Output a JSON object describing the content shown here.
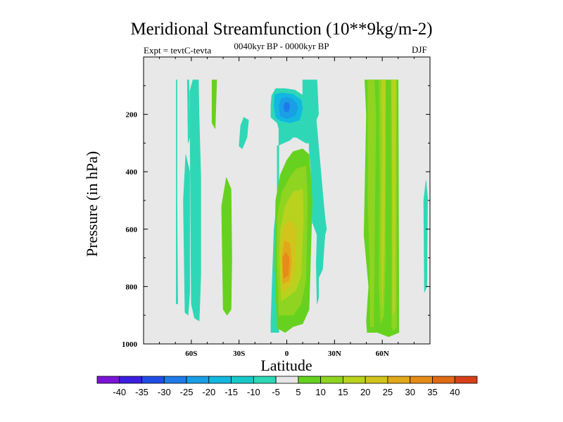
{
  "chart_data": {
    "type": "heatmap",
    "title": "Meridional Streamfunction (10**9kg/m-2)",
    "subtitle": "0040kyr BP - 0000kyr BP",
    "left_label": "Expt = tevtC-tevta",
    "right_label": "DJF",
    "xlabel": "Latitude",
    "ylabel": "Pressure (in hPa)",
    "xlim": [
      -90,
      90
    ],
    "ylim": [
      1000,
      0
    ],
    "x_ticks": [
      {
        "value": -60,
        "label": "60S"
      },
      {
        "value": -30,
        "label": "30S"
      },
      {
        "value": 0,
        "label": "0"
      },
      {
        "value": 30,
        "label": "30N"
      },
      {
        "value": 60,
        "label": "60N"
      }
    ],
    "y_ticks": [
      {
        "value": 200,
        "label": "200"
      },
      {
        "value": 400,
        "label": "400"
      },
      {
        "value": 600,
        "label": "600"
      },
      {
        "value": 800,
        "label": "800"
      },
      {
        "value": 1000,
        "label": "1000"
      }
    ],
    "background_color": "#e8e8e8",
    "colorbar": {
      "levels": [
        "-40",
        "-35",
        "-30",
        "-25",
        "-20",
        "-15",
        "-10",
        "-5",
        "5",
        "10",
        "15",
        "20",
        "25",
        "30",
        "35",
        "40"
      ],
      "colors": [
        "#7b13d6",
        "#3b1ee0",
        "#1e4de6",
        "#1f7be8",
        "#1a9ee6",
        "#12b8e0",
        "#16c9c8",
        "#2ed8b6",
        "#e6e6e6",
        "#66d21f",
        "#8fd420",
        "#b8d21e",
        "#d2c41c",
        "#e0a81a",
        "#e68a18",
        "#e06a16",
        "#d8401a"
      ]
    },
    "regions": [
      {
        "value": -10,
        "color": "#2ed8b6",
        "points": [
          [
            -69.5,
            80
          ],
          [
            -69,
            80
          ],
          [
            -69,
            860
          ],
          [
            -69.5,
            860
          ]
        ]
      },
      {
        "value": -10,
        "color": "#2ed8b6",
        "points": [
          [
            -68.5,
            860
          ],
          [
            -69,
            520
          ],
          [
            -69.5,
            860
          ]
        ]
      },
      {
        "value": -10,
        "color": "#2ed8b6",
        "points": [
          [
            -64,
            890
          ],
          [
            -65,
            500
          ],
          [
            -63.5,
            340
          ],
          [
            -61,
            400
          ],
          [
            -61,
            820
          ],
          [
            -62,
            900
          ]
        ]
      },
      {
        "value": -10,
        "color": "#2ed8b6",
        "points": [
          [
            -62.5,
            80
          ],
          [
            -61.5,
            80
          ],
          [
            -61,
            280
          ],
          [
            -62,
            300
          ]
        ]
      },
      {
        "value": -10,
        "color": "#2ed8b6",
        "points": [
          [
            -60,
            860
          ],
          [
            -61,
            120
          ],
          [
            -59,
            80
          ],
          [
            -55.5,
            80
          ],
          [
            -55,
            220
          ],
          [
            -54,
            420
          ],
          [
            -54,
            760
          ],
          [
            -55,
            920
          ],
          [
            -58,
            910
          ]
        ]
      },
      {
        "value": 5,
        "color": "#66d21f",
        "points": [
          [
            -47,
            80
          ],
          [
            -44,
            80
          ],
          [
            -45,
            250
          ],
          [
            -47,
            230
          ]
        ]
      },
      {
        "value": -10,
        "color": "#2ed8b6",
        "points": [
          [
            -30,
            310
          ],
          [
            -29,
            240
          ],
          [
            -27,
            210
          ],
          [
            -24,
            220
          ],
          [
            -25,
            280
          ],
          [
            -28,
            320
          ]
        ]
      },
      {
        "value": 5,
        "color": "#66d21f",
        "points": [
          [
            -40,
            880
          ],
          [
            -41,
            520
          ],
          [
            -38,
            420
          ],
          [
            -35,
            460
          ],
          [
            -34.5,
            700
          ],
          [
            -35,
            880
          ],
          [
            -37.5,
            900
          ]
        ]
      },
      {
        "value": -10,
        "color": "#2ed8b6",
        "points": [
          [
            -10,
            170
          ],
          [
            -9.5,
            135
          ],
          [
            -7,
            110
          ],
          [
            -1,
            110
          ],
          [
            5,
            115
          ],
          [
            12,
            140
          ],
          [
            16,
            155
          ],
          [
            18,
            185
          ],
          [
            23,
            500
          ],
          [
            24,
            560
          ],
          [
            25,
            600
          ],
          [
            24,
            620
          ],
          [
            22.5,
            740
          ],
          [
            20,
            770
          ],
          [
            20,
            840
          ],
          [
            19,
            860
          ],
          [
            18.5,
            720
          ],
          [
            19,
            620
          ],
          [
            16,
            575
          ],
          [
            16,
            580
          ],
          [
            15,
            380
          ],
          [
            14,
            320
          ],
          [
            14,
            300
          ],
          [
            12,
            300
          ],
          [
            6,
            280
          ],
          [
            4,
            280
          ],
          [
            2,
            290
          ],
          [
            -2,
            300
          ],
          [
            -6,
            310
          ],
          [
            -6,
            500
          ],
          [
            -8,
            600
          ],
          [
            -9,
            760
          ],
          [
            -10,
            920
          ],
          [
            -10,
            960
          ],
          [
            -5,
            960
          ],
          [
            -5,
            250
          ],
          [
            -6,
            230
          ],
          [
            -8,
            220
          ],
          [
            -10,
            210
          ]
        ]
      },
      {
        "value": -10,
        "color": "#2ed8b6",
        "points": [
          [
            10,
            200
          ],
          [
            10,
            80
          ],
          [
            19,
            80
          ],
          [
            20,
            200
          ],
          [
            17,
            240
          ],
          [
            12,
            240
          ]
        ]
      },
      {
        "value": -15,
        "color": "#12b8e0",
        "points": [
          [
            -8,
            170
          ],
          [
            -7.5,
            130
          ],
          [
            -3,
            125
          ],
          [
            4,
            130
          ],
          [
            9,
            150
          ],
          [
            10,
            180
          ],
          [
            8,
            220
          ],
          [
            2,
            230
          ],
          [
            -4,
            222
          ],
          [
            -7,
            210
          ]
        ]
      },
      {
        "value": -20,
        "color": "#1a9ee6",
        "points": [
          [
            -5,
            170
          ],
          [
            -3.5,
            145
          ],
          [
            0,
            140
          ],
          [
            3,
            145
          ],
          [
            6,
            160
          ],
          [
            7,
            180
          ],
          [
            5,
            205
          ],
          [
            0,
            215
          ],
          [
            -4,
            205
          ]
        ]
      },
      {
        "value": -25,
        "color": "#1f7be8",
        "points": [
          [
            -2,
            175
          ],
          [
            -1,
            158
          ],
          [
            1,
            158
          ],
          [
            2,
            172
          ],
          [
            1,
            190
          ],
          [
            -1,
            190
          ]
        ]
      },
      {
        "value": 5,
        "color": "#66d21f",
        "points": [
          [
            -6,
            945
          ],
          [
            -7.5,
            720
          ],
          [
            -7,
            500
          ],
          [
            -4,
            410
          ],
          [
            0,
            360
          ],
          [
            4,
            330
          ],
          [
            10,
            320
          ],
          [
            14,
            340
          ],
          [
            16,
            500
          ],
          [
            14,
            880
          ],
          [
            10,
            930
          ],
          [
            4,
            940
          ],
          [
            -1,
            960
          ]
        ]
      },
      {
        "value": 10,
        "color": "#8fd420",
        "points": [
          [
            -5,
            900
          ],
          [
            -6,
            720
          ],
          [
            -6,
            560
          ],
          [
            -3,
            470
          ],
          [
            2,
            420
          ],
          [
            6,
            390
          ],
          [
            12,
            380
          ],
          [
            13,
            500
          ],
          [
            12,
            780
          ],
          [
            9,
            860
          ],
          [
            4,
            900
          ]
        ]
      },
      {
        "value": 15,
        "color": "#b8d21e",
        "points": [
          [
            -3.5,
            850
          ],
          [
            -4.5,
            700
          ],
          [
            -4,
            600
          ],
          [
            -1,
            520
          ],
          [
            4,
            470
          ],
          [
            10,
            460
          ],
          [
            10.5,
            560
          ],
          [
            9,
            760
          ],
          [
            6,
            810
          ],
          [
            2,
            830
          ]
        ]
      },
      {
        "value": 20,
        "color": "#d2c41c",
        "points": [
          [
            -3,
            820
          ],
          [
            -4,
            660
          ],
          [
            -2,
            590
          ],
          [
            2,
            570
          ],
          [
            6,
            600
          ],
          [
            5,
            740
          ],
          [
            2,
            800
          ]
        ]
      },
      {
        "value": 25,
        "color": "#e0a81a",
        "points": [
          [
            -2.5,
            790
          ],
          [
            -3,
            700
          ],
          [
            -1.5,
            640
          ],
          [
            2,
            650
          ],
          [
            3,
            720
          ],
          [
            1.5,
            780
          ]
        ]
      },
      {
        "value": 30,
        "color": "#e68a18",
        "points": [
          [
            -2,
            770
          ],
          [
            -2.5,
            700
          ],
          [
            -0.5,
            680
          ],
          [
            1.5,
            700
          ],
          [
            1,
            760
          ]
        ]
      },
      {
        "value": 5,
        "color": "#66d21f",
        "points": [
          [
            49,
            80
          ],
          [
            70,
            80
          ],
          [
            70.5,
            960
          ],
          [
            64,
            975
          ],
          [
            57,
            960
          ],
          [
            50.5,
            960
          ],
          [
            50,
            920
          ],
          [
            51.5,
            800
          ],
          [
            48.5,
            620
          ],
          [
            50,
            200
          ]
        ]
      },
      {
        "value": 10,
        "color": "#8fd420",
        "points": [
          [
            51,
            80
          ],
          [
            55,
            80
          ],
          [
            56,
            200
          ],
          [
            54.5,
            940
          ],
          [
            52.5,
            940
          ],
          [
            52,
            700
          ],
          [
            51,
            500
          ]
        ]
      },
      {
        "value": 10,
        "color": "#8fd420",
        "points": [
          [
            58,
            80
          ],
          [
            62,
            80
          ],
          [
            62,
            700
          ],
          [
            61,
            900
          ],
          [
            59,
            930
          ],
          [
            58,
            800
          ],
          [
            58.5,
            400
          ]
        ]
      },
      {
        "value": 15,
        "color": "#b8d21e",
        "points": [
          [
            59.5,
            80
          ],
          [
            62,
            80
          ],
          [
            61.5,
            500
          ],
          [
            61,
            700
          ],
          [
            60,
            880
          ],
          [
            59.5,
            700
          ],
          [
            60,
            300
          ]
        ]
      },
      {
        "value": 10,
        "color": "#8fd420",
        "points": [
          [
            65.5,
            80
          ],
          [
            69,
            80
          ],
          [
            69,
            940
          ],
          [
            67,
            955
          ],
          [
            66,
            940
          ],
          [
            66,
            500
          ]
        ]
      },
      {
        "value": 15,
        "color": "#b8d21e",
        "points": [
          [
            66,
            80
          ],
          [
            68.5,
            80
          ],
          [
            68,
            880
          ],
          [
            66.5,
            900
          ],
          [
            66.5,
            500
          ]
        ]
      },
      {
        "value": -10,
        "color": "#2ed8b6",
        "points": [
          [
            86,
            500
          ],
          [
            87.5,
            430
          ],
          [
            88.5,
            490
          ],
          [
            88,
            800
          ],
          [
            86.5,
            820
          ]
        ]
      }
    ]
  }
}
